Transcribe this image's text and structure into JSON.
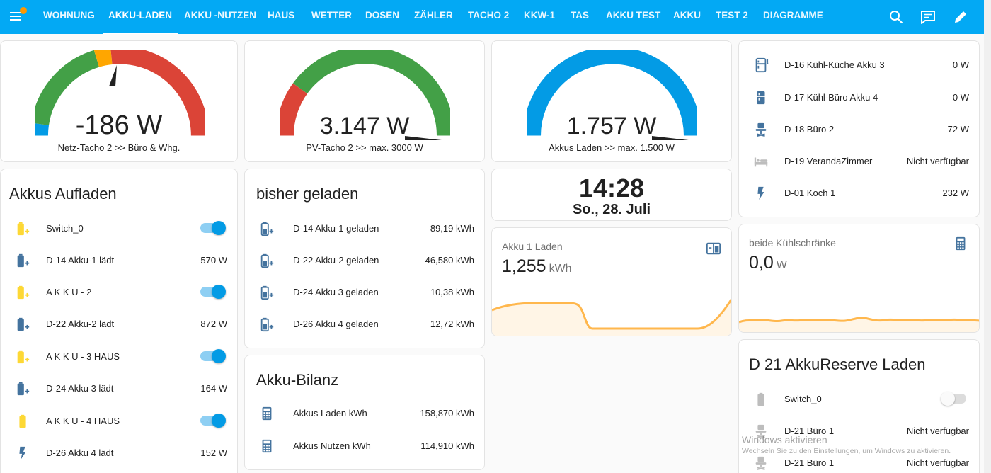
{
  "header": {
    "tabs": [
      {
        "label": "WOHNUNG",
        "active": false
      },
      {
        "label": "AKKU-LADEN",
        "active": true
      },
      {
        "label": "AKKU -NUTZEN",
        "active": false
      },
      {
        "label": "HAUS",
        "active": false
      },
      {
        "label": "WETTER",
        "active": false
      },
      {
        "label": "DOSEN",
        "active": false
      },
      {
        "label": "ZÄHLER",
        "active": false
      },
      {
        "label": "TACHO 2",
        "active": false
      },
      {
        "label": "KKW-1",
        "active": false
      },
      {
        "label": "TAS",
        "active": false
      },
      {
        "label": "AKKU TEST",
        "active": false
      },
      {
        "label": "AKKU",
        "active": false
      },
      {
        "label": "TEST 2",
        "active": false
      },
      {
        "label": "DIAGRAMME",
        "active": false
      }
    ],
    "icons": [
      "menu-icon",
      "search-icon",
      "chat-icon",
      "pencil-icon"
    ],
    "accent": "#03a9f4",
    "notification_color": "#ff9800"
  },
  "gauges": [
    {
      "value": "-186 W",
      "label": "Netz-Tacho 2 >> Büro & Whg.",
      "fraction": 0.57
    },
    {
      "value": "3.147 W",
      "label": "PV-Tacho 2 >> max. 3000 W",
      "fraction": 1.0
    },
    {
      "value": "1.757 W",
      "label": "Akkus Laden >> max. 1.500 W",
      "fraction": 1.0
    }
  ],
  "akkus_aufladen": {
    "title": "Akkus Aufladen",
    "rows": [
      {
        "icon": "battery-charging-icon",
        "name": "Switch_0",
        "toggle": true
      },
      {
        "icon": "battery-charging-icon",
        "name": "D-14 Akku-1 lädt",
        "value": "570 W"
      },
      {
        "icon": "battery-charging-icon",
        "name": "A K K U - 2",
        "toggle": true
      },
      {
        "icon": "battery-charging-icon",
        "name": "D-22 Akku-2 lädt",
        "value": "872 W"
      },
      {
        "icon": "battery-charging-icon",
        "name": "A K K U - 3 HAUS",
        "toggle": true
      },
      {
        "icon": "battery-charging-icon",
        "name": "D-24 Akku 3 lädt",
        "value": "164 W"
      },
      {
        "icon": "battery-icon",
        "name": "A K K U - 4 HAUS",
        "toggle": true
      },
      {
        "icon": "flash-icon",
        "name": "D-26 Akku 4 lädt",
        "value": "152 W"
      }
    ]
  },
  "bisher_geladen": {
    "title": "bisher geladen",
    "rows": [
      {
        "icon": "battery-charging-icon",
        "name": "D-14 Akku-1 geladen",
        "value": "89,19 kWh"
      },
      {
        "icon": "battery-charging-icon",
        "name": "D-22 Akku-2 geladen",
        "value": "46,580 kWh"
      },
      {
        "icon": "battery-charging-icon",
        "name": "D-24 Akku 3 geladen",
        "value": "10,38 kWh"
      },
      {
        "icon": "battery-charging-icon",
        "name": "D-26 Akku 4 geladen",
        "value": "12,72 kWh"
      }
    ]
  },
  "akku_bilanz": {
    "title": "Akku-Bilanz",
    "rows": [
      {
        "icon": "calculator-icon",
        "name": "Akkus Laden kWh",
        "value": "158,870 kWh"
      },
      {
        "icon": "calculator-icon",
        "name": "Akkus Nutzen kWh",
        "value": "114,910 kWh"
      }
    ]
  },
  "clock": {
    "time": "14:28",
    "date": "So., 28. Juli"
  },
  "akku1_laden": {
    "name": "Akku 1 Laden",
    "value": "1,255",
    "unit": "kWh",
    "icon": "battery-card-icon"
  },
  "devices": {
    "rows": [
      {
        "icon": "fridge-icon",
        "name": "D-16 Kühl-Küche Akku 3",
        "value": "0 W"
      },
      {
        "icon": "fridge-icon",
        "name": "D-17 Kühl-Büro Akku 4",
        "value": "0 W"
      },
      {
        "icon": "chair-icon",
        "name": "D-18 Büro 2",
        "value": "72 W"
      },
      {
        "icon": "bed-icon",
        "name": "D-19 VerandaZimmer",
        "value": "Nicht verfügbar"
      },
      {
        "icon": "flash-icon",
        "name": "D-01 Koch 1",
        "value": "232 W"
      }
    ]
  },
  "kuehlschraenke": {
    "name": "beide Kühlschränke",
    "value": "0,0",
    "unit": "W",
    "icon": "calculator-icon"
  },
  "reserve": {
    "title": "D 21 AkkuReserve Laden",
    "rows": [
      {
        "icon": "battery-icon",
        "name": "Switch_0",
        "toggle": false
      },
      {
        "icon": "chair-icon",
        "name": "D-21 Büro 1",
        "value": "Nicht verfügbar"
      },
      {
        "icon": "chair-icon",
        "name": "D-21 Büro 1",
        "value": "Nicht verfügbar"
      }
    ]
  },
  "watermark": {
    "title": "Windows aktivieren",
    "subtitle": "Wechseln Sie zu den Einstellungen, um Windows zu aktivieren."
  }
}
